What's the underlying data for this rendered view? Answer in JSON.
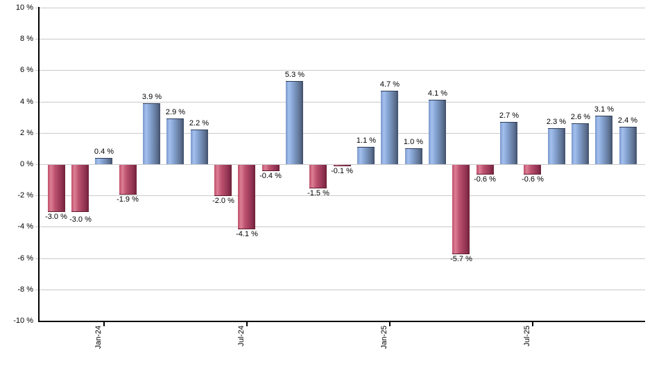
{
  "chart_data": {
    "type": "bar",
    "title": "",
    "xlabel": "",
    "ylabel": "",
    "values": [
      -3.0,
      -3.0,
      0.4,
      -1.9,
      3.9,
      2.9,
      2.2,
      -2.0,
      -4.1,
      -0.4,
      5.3,
      -1.5,
      -0.1,
      1.1,
      4.7,
      1.0,
      4.1,
      -5.7,
      -0.6,
      2.7,
      -0.6,
      2.3,
      2.6,
      3.1,
      2.4
    ],
    "bar_labels": [
      "-3.0 %",
      "-3.0 %",
      "0.4 %",
      "-1.9 %",
      "3.9 %",
      "2.9 %",
      "2.2 %",
      "-2.0 %",
      "-4.1 %",
      "-0.4 %",
      "5.3 %",
      "-1.5 %",
      "-0.1 %",
      "1.1 %",
      "4.7 %",
      "1.0 %",
      "4.1 %",
      "-5.7 %",
      "-0.6 %",
      "2.7 %",
      "-0.6 %",
      "2.3 %",
      "2.6 %",
      "3.1 %",
      "2.4 %"
    ],
    "x_ticks": [
      {
        "index": 2,
        "label": "Jan-24"
      },
      {
        "index": 8,
        "label": "Jul-24"
      },
      {
        "index": 14,
        "label": "Jan-25"
      },
      {
        "index": 20,
        "label": "Jul-25"
      }
    ],
    "y_tick_labels": [
      "10 %",
      "8 %",
      "6 %",
      "4 %",
      "2 %",
      "0 %",
      "-2 %",
      "-4 %",
      "-6 %",
      "-8 %",
      "-10 %"
    ],
    "ylim": [
      -10,
      10
    ],
    "y_step": 2,
    "grid": true,
    "legend": "none",
    "colors": {
      "positive_gradient": [
        "#7a98cc",
        "#a3c0ee",
        "#87a5d4",
        "#5d7191",
        "#414f6b"
      ],
      "negative_gradient": [
        "#bf4e6a",
        "#dd7f95",
        "#bd5370",
        "#8e3050",
        "#6e2138"
      ],
      "grid_color": "#c9c9c9",
      "axis_color": "#000000",
      "text_color": "#000000",
      "background": "#ffffff"
    }
  }
}
